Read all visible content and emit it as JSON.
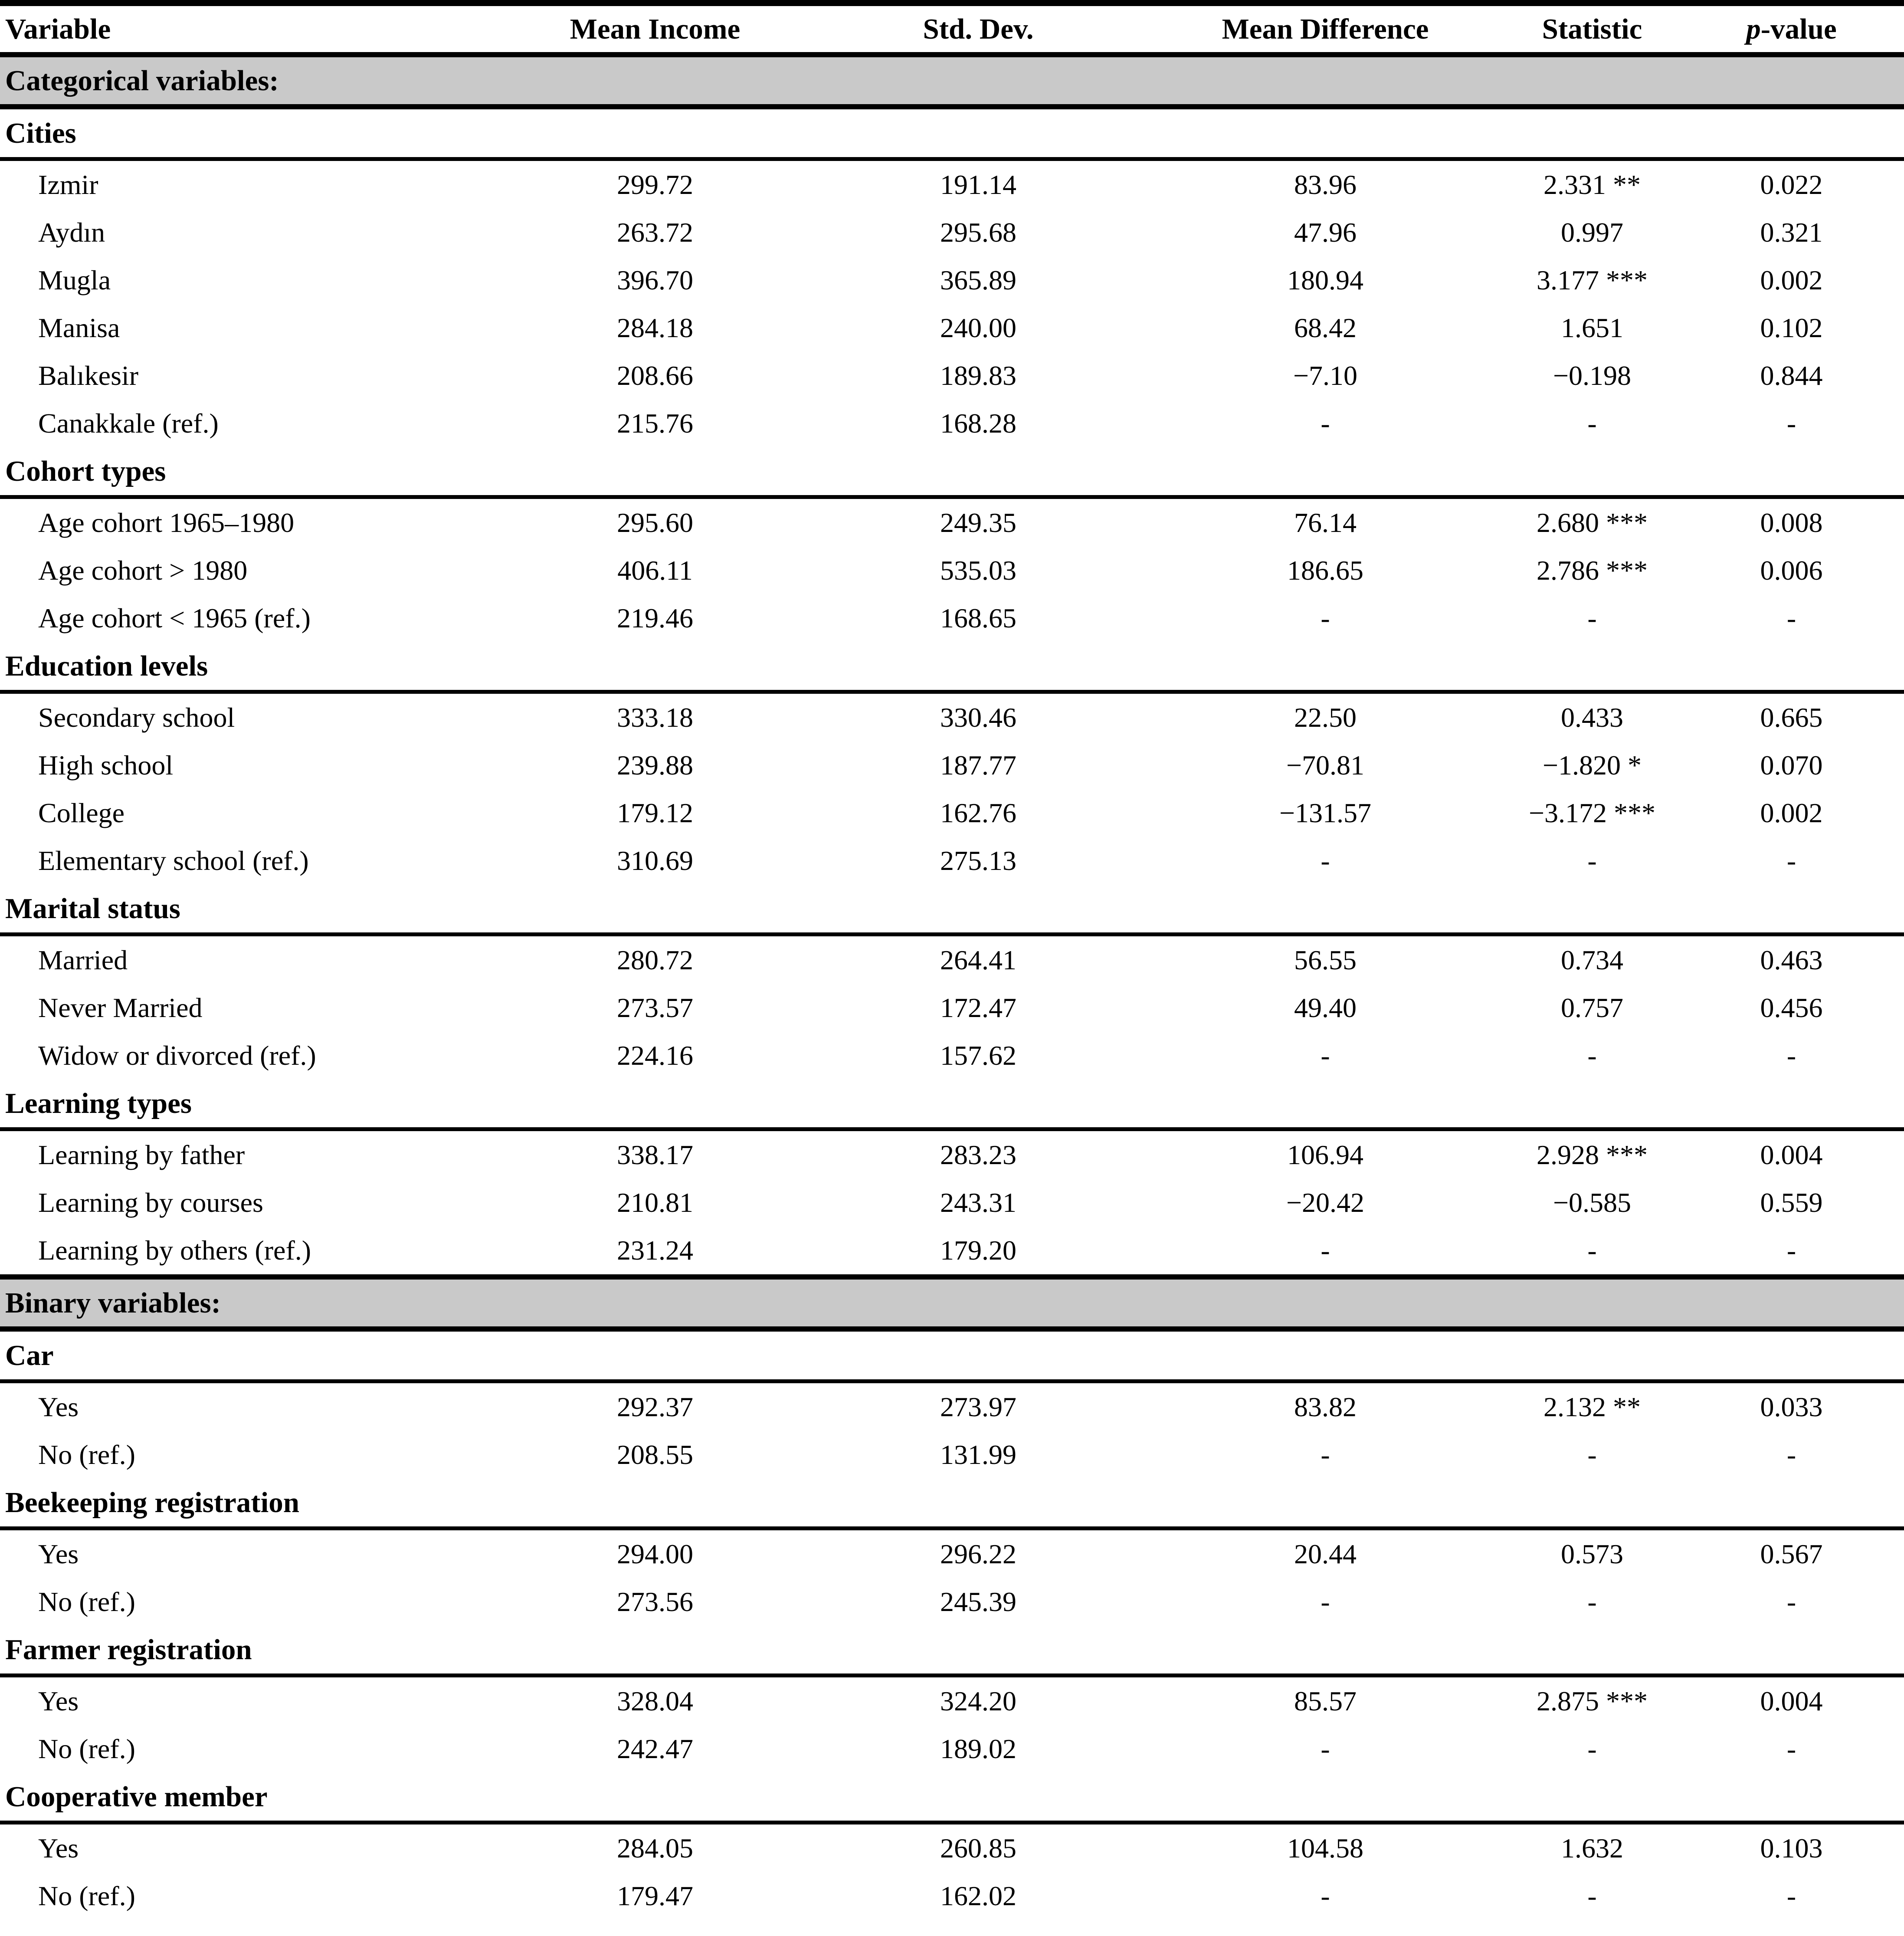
{
  "table": {
    "columns": [
      "Variable",
      "Mean Income",
      "Std. Dev.",
      "Mean Difference",
      "Statistic"
    ],
    "pheader": {
      "p": "p",
      "rest": "-value"
    },
    "sections": [
      {
        "type": "band",
        "label": "Categorical variables:"
      },
      {
        "type": "group",
        "label": "Cities",
        "rows": [
          {
            "variable": "Izmir",
            "mean_income": "299.72",
            "std_dev": "191.14",
            "mean_diff": "83.96",
            "statistic": "2.331 **",
            "p_value": "0.022"
          },
          {
            "variable": "Aydın",
            "mean_income": "263.72",
            "std_dev": "295.68",
            "mean_diff": "47.96",
            "statistic": "0.997",
            "p_value": "0.321"
          },
          {
            "variable": "Mugla",
            "mean_income": "396.70",
            "std_dev": "365.89",
            "mean_diff": "180.94",
            "statistic": "3.177 ***",
            "p_value": "0.002"
          },
          {
            "variable": "Manisa",
            "mean_income": "284.18",
            "std_dev": "240.00",
            "mean_diff": "68.42",
            "statistic": "1.651",
            "p_value": "0.102"
          },
          {
            "variable": "Balıkesir",
            "mean_income": "208.66",
            "std_dev": "189.83",
            "mean_diff": "−7.10",
            "statistic": "−0.198",
            "p_value": "0.844"
          },
          {
            "variable": "Canakkale (ref.)",
            "mean_income": "215.76",
            "std_dev": "168.28",
            "mean_diff": "-",
            "statistic": "-",
            "p_value": "-"
          }
        ]
      },
      {
        "type": "group",
        "label": "Cohort types",
        "rows": [
          {
            "variable": "Age cohort 1965–1980",
            "mean_income": "295.60",
            "std_dev": "249.35",
            "mean_diff": "76.14",
            "statistic": "2.680 ***",
            "p_value": "0.008"
          },
          {
            "variable": "Age cohort > 1980",
            "mean_income": "406.11",
            "std_dev": "535.03",
            "mean_diff": "186.65",
            "statistic": "2.786 ***",
            "p_value": "0.006"
          },
          {
            "variable": "Age cohort < 1965 (ref.)",
            "mean_income": "219.46",
            "std_dev": "168.65",
            "mean_diff": "-",
            "statistic": "-",
            "p_value": "-"
          }
        ]
      },
      {
        "type": "group",
        "label": "Education levels",
        "rows": [
          {
            "variable": "Secondary school",
            "mean_income": "333.18",
            "std_dev": "330.46",
            "mean_diff": "22.50",
            "statistic": "0.433",
            "p_value": "0.665"
          },
          {
            "variable": "High school",
            "mean_income": "239.88",
            "std_dev": "187.77",
            "mean_diff": "−70.81",
            "statistic": "−1.820 *",
            "p_value": "0.070"
          },
          {
            "variable": "College",
            "mean_income": "179.12",
            "std_dev": "162.76",
            "mean_diff": "−131.57",
            "statistic": "−3.172 ***",
            "p_value": "0.002"
          },
          {
            "variable": "Elementary school (ref.)",
            "mean_income": "310.69",
            "std_dev": "275.13",
            "mean_diff": "-",
            "statistic": "-",
            "p_value": "-"
          }
        ]
      },
      {
        "type": "group",
        "label": "Marital status",
        "rows": [
          {
            "variable": "Married",
            "mean_income": "280.72",
            "std_dev": "264.41",
            "mean_diff": "56.55",
            "statistic": "0.734",
            "p_value": "0.463"
          },
          {
            "variable": "Never Married",
            "mean_income": "273.57",
            "std_dev": "172.47",
            "mean_diff": "49.40",
            "statistic": "0.757",
            "p_value": "0.456"
          },
          {
            "variable": "Widow or divorced (ref.)",
            "mean_income": "224.16",
            "std_dev": "157.62",
            "mean_diff": "-",
            "statistic": "-",
            "p_value": "-"
          }
        ]
      },
      {
        "type": "group",
        "label": "Learning types",
        "rows": [
          {
            "variable": "Learning by father",
            "mean_income": "338.17",
            "std_dev": "283.23",
            "mean_diff": "106.94",
            "statistic": "2.928 ***",
            "p_value": "0.004"
          },
          {
            "variable": "Learning by courses",
            "mean_income": "210.81",
            "std_dev": "243.31",
            "mean_diff": "−20.42",
            "statistic": "−0.585",
            "p_value": "0.559"
          },
          {
            "variable": "Learning by others (ref.)",
            "mean_income": "231.24",
            "std_dev": "179.20",
            "mean_diff": "-",
            "statistic": "-",
            "p_value": "-"
          }
        ]
      },
      {
        "type": "band",
        "label": "Binary variables:"
      },
      {
        "type": "group",
        "label": "Car",
        "rows": [
          {
            "variable": "Yes",
            "mean_income": "292.37",
            "std_dev": "273.97",
            "mean_diff": "83.82",
            "statistic": "2.132 **",
            "p_value": "0.033"
          },
          {
            "variable": "No (ref.)",
            "mean_income": "208.55",
            "std_dev": "131.99",
            "mean_diff": "-",
            "statistic": "-",
            "p_value": "-"
          }
        ]
      },
      {
        "type": "group",
        "label": "Beekeeping registration",
        "rows": [
          {
            "variable": "Yes",
            "mean_income": "294.00",
            "std_dev": "296.22",
            "mean_diff": "20.44",
            "statistic": "0.573",
            "p_value": "0.567"
          },
          {
            "variable": "No (ref.)",
            "mean_income": "273.56",
            "std_dev": "245.39",
            "mean_diff": "-",
            "statistic": "-",
            "p_value": "-"
          }
        ]
      },
      {
        "type": "group",
        "label": "Farmer registration",
        "rows": [
          {
            "variable": "Yes",
            "mean_income": "328.04",
            "std_dev": "324.20",
            "mean_diff": "85.57",
            "statistic": "2.875 ***",
            "p_value": "0.004"
          },
          {
            "variable": "No (ref.)",
            "mean_income": "242.47",
            "std_dev": "189.02",
            "mean_diff": "-",
            "statistic": "-",
            "p_value": "-"
          }
        ]
      },
      {
        "type": "group",
        "label": "Cooperative member",
        "rows": [
          {
            "variable": "Yes",
            "mean_income": "284.05",
            "std_dev": "260.85",
            "mean_diff": "104.58",
            "statistic": "1.632",
            "p_value": "0.103"
          },
          {
            "variable": "No (ref.)",
            "mean_income": "179.47",
            "std_dev": "162.02",
            "mean_diff": "-",
            "statistic": "-",
            "p_value": "-"
          }
        ]
      }
    ]
  }
}
